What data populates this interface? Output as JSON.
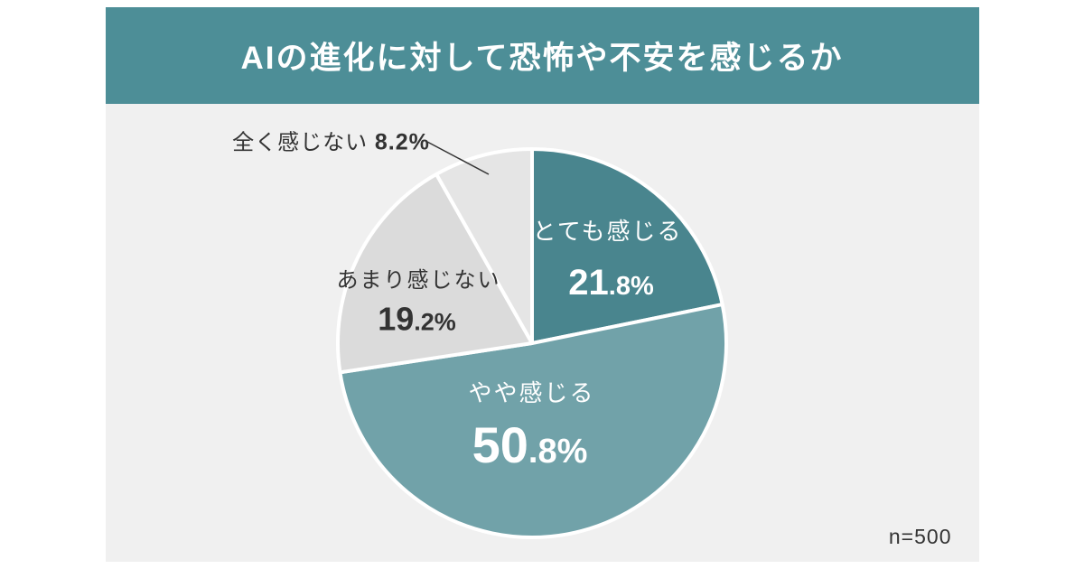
{
  "header": {
    "title": "AIの進化に対して恐怖や不安を感じるか",
    "bg": "#4D8E97",
    "text_color": "#ffffff"
  },
  "footer": {
    "sample_size": "n=500"
  },
  "colors": {
    "panel_bg": "#f0f0f0",
    "page_bg": "#ffffff",
    "dark_text": "#333333"
  },
  "chart_data": {
    "type": "pie",
    "title": "AIの進化に対して恐怖や不安を感じるか",
    "sample_size": 500,
    "start_angle_deg": -90,
    "direction": "clockwise",
    "legend_position": "none",
    "slices": [
      {
        "label": "とても感じる",
        "value": 21.8,
        "pct_text": "21.8%",
        "pct_big": "21",
        "pct_small": ".8%",
        "color": "#49858E",
        "label_color": "#ffffff"
      },
      {
        "label": "やや感じる",
        "value": 50.8,
        "pct_text": "50.8%",
        "pct_big": "50",
        "pct_small": ".8%",
        "color": "#71A2A9",
        "label_color": "#ffffff"
      },
      {
        "label": "あまり感じない",
        "value": 19.2,
        "pct_text": "19.2%",
        "pct_big": "19",
        "pct_small": ".2%",
        "color": "#DBDBDB",
        "label_color": "#333333"
      },
      {
        "label": "全く感じない",
        "value": 8.2,
        "pct_text": "8.2%",
        "pct_big": "8",
        "pct_small": ".2%",
        "color": "#E5E5E5",
        "label_color": "#333333"
      }
    ]
  }
}
